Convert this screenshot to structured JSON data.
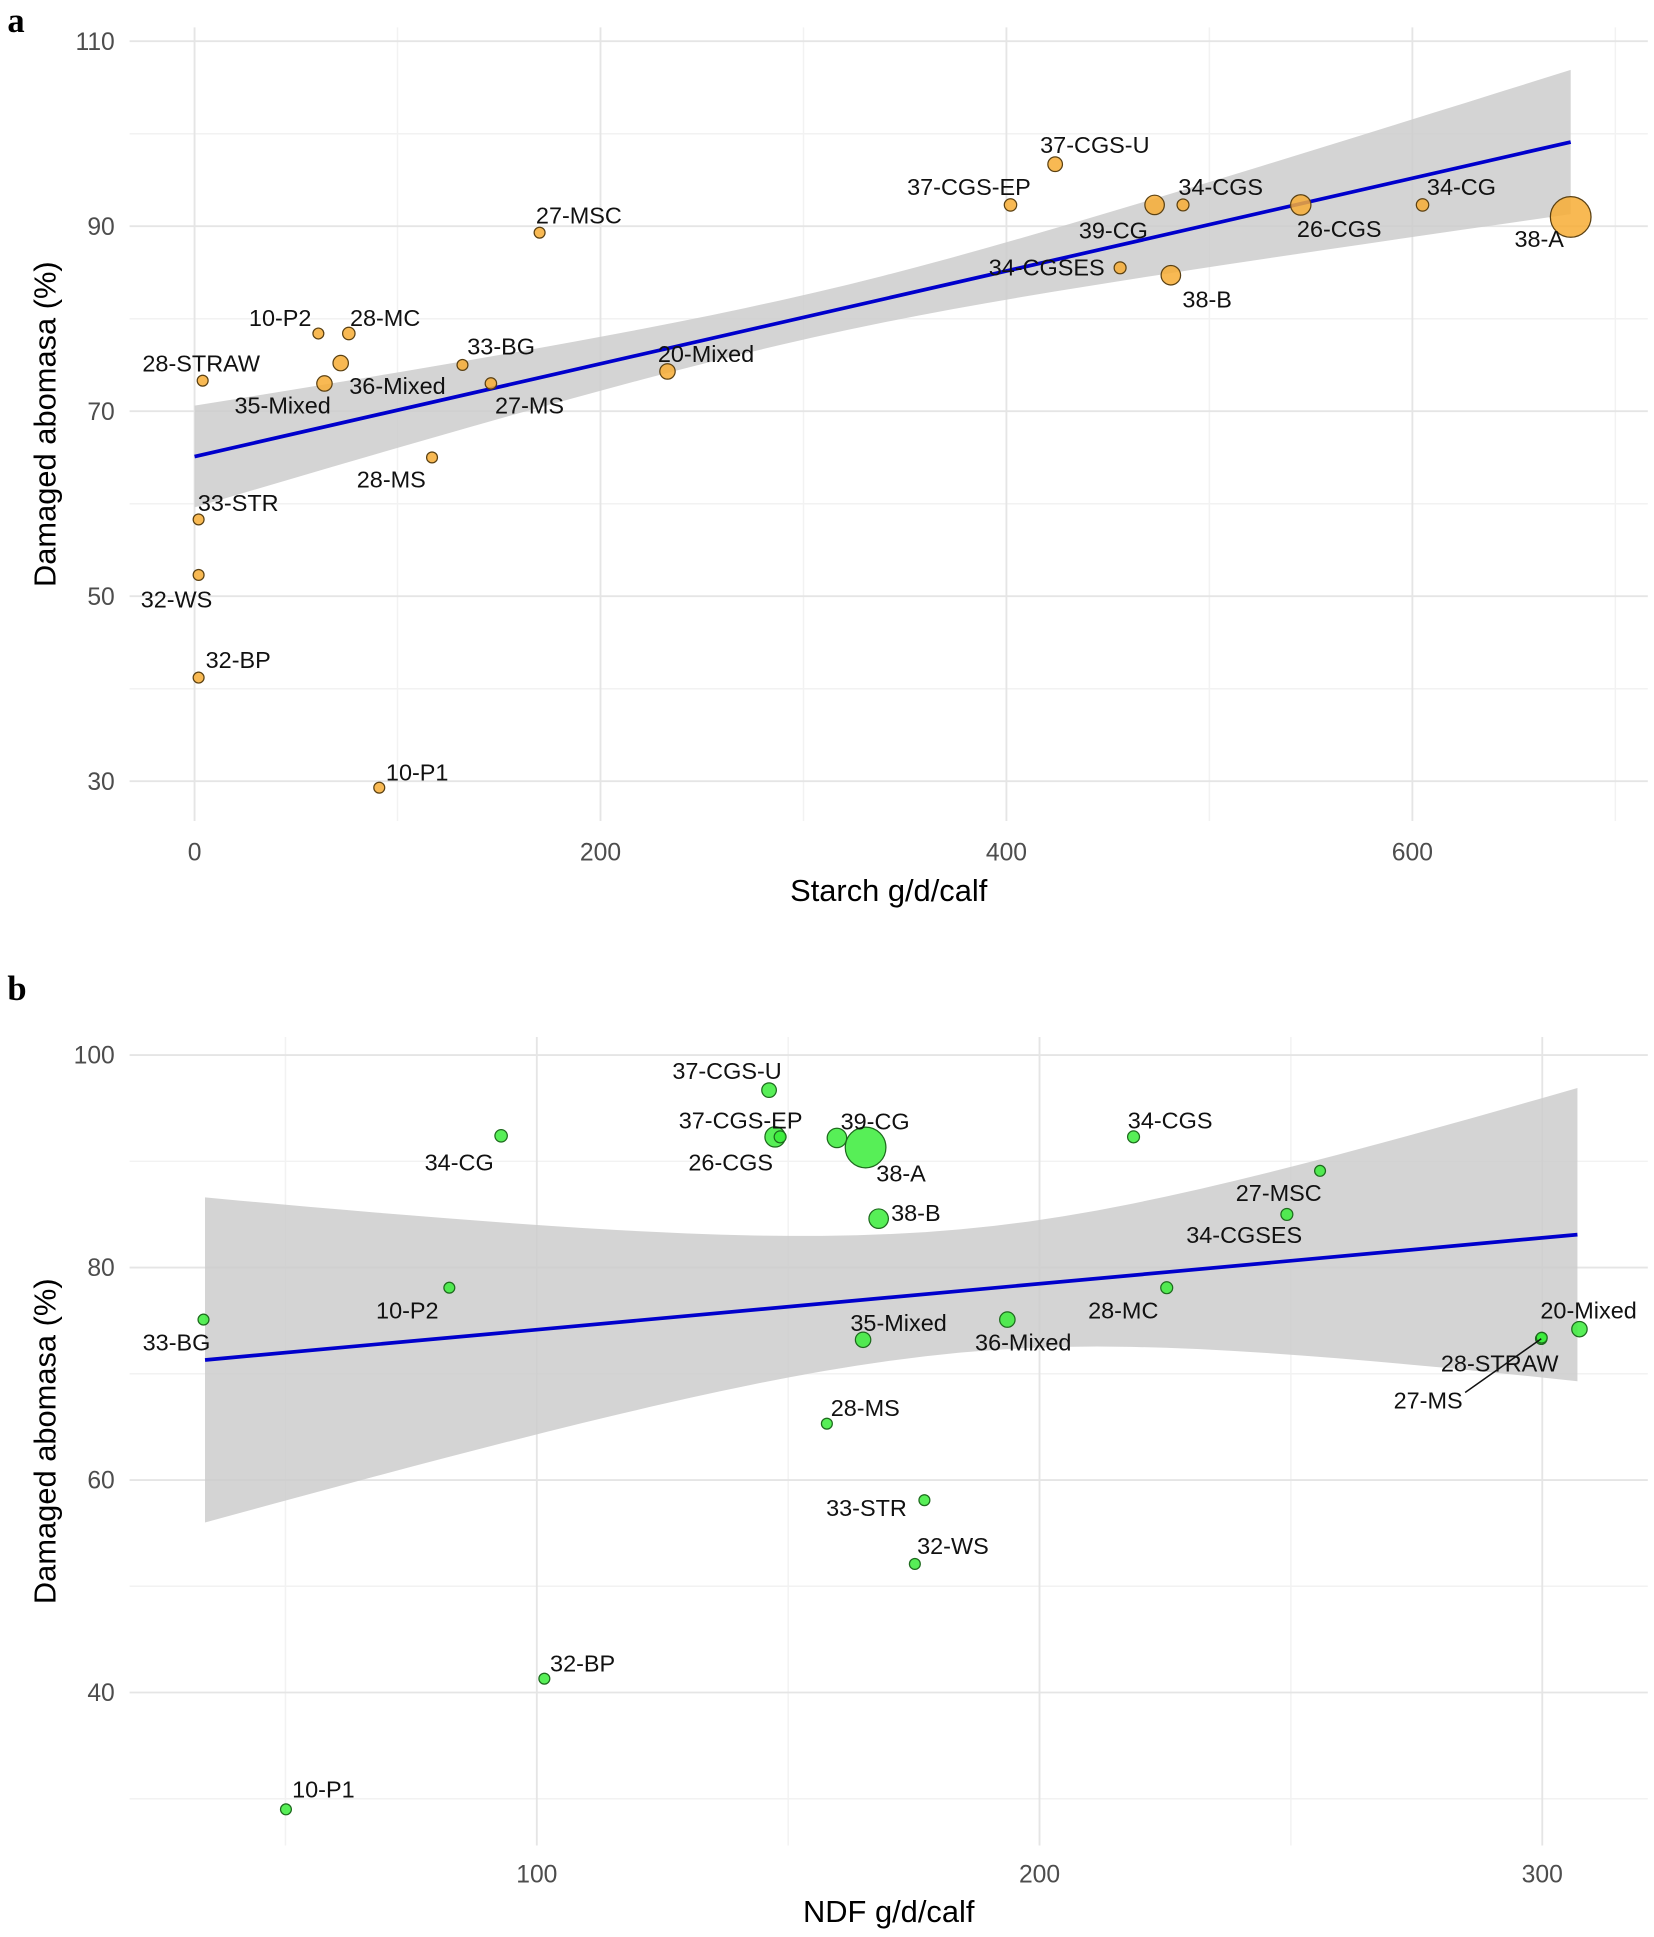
{
  "chart_data": [
    {
      "panel": "a",
      "type": "scatter",
      "xlabel": "Starch g/d/calf",
      "ylabel": "Damaged abomasa (%)",
      "xlim": [
        -32,
        716
      ],
      "ylim": [
        25.7,
        111.5
      ],
      "xticks": [
        0,
        200,
        400,
        600
      ],
      "yticks": [
        30,
        50,
        70,
        90,
        110
      ],
      "grid": true,
      "marker_color": "#f7ad35",
      "marker_edge": "#5a4012",
      "fit": {
        "x": [
          0,
          678
        ],
        "y": [
          65.1,
          99.1
        ],
        "color": "#0000cc"
      },
      "ci_band": {
        "x_center": 300,
        "x": [
          0,
          678
        ],
        "y_mean": [
          65.1,
          99.1
        ],
        "half_width_at_ends": [
          5.5,
          7.8
        ],
        "half_width_min": 2.4,
        "color": "#cccccc"
      },
      "points": [
        {
          "label": "28-STRAW",
          "x": 4,
          "y": 73.3,
          "size": 1
        },
        {
          "label": "10-P2",
          "x": 61,
          "y": 78.4,
          "size": 1
        },
        {
          "label": "28-MC",
          "x": 76,
          "y": 78.4,
          "size": 1.3
        },
        {
          "label": "36-Mixed",
          "x": 72,
          "y": 75.2,
          "size": 2
        },
        {
          "label": "35-Mixed",
          "x": 64,
          "y": 73,
          "size": 2
        },
        {
          "label": "33-BG",
          "x": 132,
          "y": 75,
          "size": 1
        },
        {
          "label": "27-MS",
          "x": 146,
          "y": 73,
          "size": 1.1
        },
        {
          "label": "28-MS",
          "x": 117,
          "y": 65,
          "size": 1
        },
        {
          "label": "27-MSC",
          "x": 170,
          "y": 89.3,
          "size": 1
        },
        {
          "label": "20-Mixed",
          "x": 233,
          "y": 74.3,
          "size": 2
        },
        {
          "label": "33-STR",
          "x": 2,
          "y": 58.3,
          "size": 1
        },
        {
          "label": "32-WS",
          "x": 2,
          "y": 52.3,
          "size": 1
        },
        {
          "label": "32-BP",
          "x": 2,
          "y": 41.2,
          "size": 1
        },
        {
          "label": "10-P1",
          "x": 91,
          "y": 29.3,
          "size": 1
        },
        {
          "label": "37-CGS-EP",
          "x": 402,
          "y": 92.3,
          "size": 1.3
        },
        {
          "label": "37-CGS-U",
          "x": 424,
          "y": 96.7,
          "size": 1.8
        },
        {
          "label": "39-CG",
          "x": 473,
          "y": 92.3,
          "size": 3.2
        },
        {
          "label": "34-CGS",
          "x": 487,
          "y": 92.3,
          "size": 1.2
        },
        {
          "label": "34-CGSES",
          "x": 456,
          "y": 85.5,
          "size": 1.2
        },
        {
          "label": "38-B",
          "x": 481,
          "y": 84.7,
          "size": 3.2
        },
        {
          "label": "26-CGS",
          "x": 545,
          "y": 92.3,
          "size": 3.5
        },
        {
          "label": "34-CG",
          "x": 605,
          "y": 92.3,
          "size": 1.3
        },
        {
          "label": "38-A",
          "x": 678,
          "y": 91,
          "size": 6.4
        }
      ]
    },
    {
      "panel": "b",
      "type": "scatter",
      "xlabel": "NDF g/d/calf",
      "ylabel": "Damaged abomasa (%)",
      "xlim": [
        19,
        321
      ],
      "ylim": [
        25.6,
        101.7
      ],
      "xticks": [
        100,
        200,
        300
      ],
      "yticks": [
        40,
        60,
        80,
        100
      ],
      "grid": true,
      "marker_color": "#39ec39",
      "marker_edge": "#1d6a1d",
      "fit": {
        "x": [
          34,
          307
        ],
        "y": [
          71.3,
          83.1
        ],
        "color": "#0000cc"
      },
      "ci_band": {
        "x_center": 185,
        "x": [
          34,
          307
        ],
        "y_mean": [
          71.3,
          83.1
        ],
        "half_width_at_ends": [
          15.3,
          13.8
        ],
        "half_width_min": 5.8,
        "color": "#cccccc"
      },
      "points": [
        {
          "label": "10-P1",
          "x": 50.1,
          "y": 29.0,
          "size": 1
        },
        {
          "label": "32-BP",
          "x": 101.5,
          "y": 41.3,
          "size": 1
        },
        {
          "label": "33-BG",
          "x": 33.7,
          "y": 75.1,
          "size": 1
        },
        {
          "label": "10-P2",
          "x": 82.6,
          "y": 78.1,
          "size": 1
        },
        {
          "label": "34-CG",
          "x": 92.9,
          "y": 92.4,
          "size": 1.3
        },
        {
          "label": "37-CGS-U",
          "x": 146.2,
          "y": 96.7,
          "size": 1.8
        },
        {
          "label": "26-CGS",
          "x": 147.4,
          "y": 92.3,
          "size": 3.5
        },
        {
          "label": "37-CGS-EP",
          "x": 148.4,
          "y": 92.3,
          "size": 1.2
        },
        {
          "label": "39-CG",
          "x": 159.7,
          "y": 92.2,
          "size": 3.2
        },
        {
          "label": "38-A",
          "x": 165.4,
          "y": 91.3,
          "size": 6.4
        },
        {
          "label": "38-B",
          "x": 168,
          "y": 84.6,
          "size": 3.2
        },
        {
          "label": "35-Mixed",
          "x": 164.9,
          "y": 73.2,
          "size": 2
        },
        {
          "label": "28-MS",
          "x": 157.7,
          "y": 65.3,
          "size": 1
        },
        {
          "label": "33-STR",
          "x": 177.1,
          "y": 58.1,
          "size": 1
        },
        {
          "label": "32-WS",
          "x": 175.2,
          "y": 52.1,
          "size": 1
        },
        {
          "label": "36-Mixed",
          "x": 193.6,
          "y": 75.1,
          "size": 2
        },
        {
          "label": "34-CGS",
          "x": 218.7,
          "y": 92.3,
          "size": 1.2
        },
        {
          "label": "28-MC",
          "x": 225.3,
          "y": 78.1,
          "size": 1.2
        },
        {
          "label": "27-MSC",
          "x": 255.8,
          "y": 89.1,
          "size": 1
        },
        {
          "label": "34-CGSES",
          "x": 249.2,
          "y": 85,
          "size": 1.2
        },
        {
          "label": "27-MS",
          "x": 299.8,
          "y": 73.3,
          "size": 1.1
        },
        {
          "label": "28-STRAW",
          "x": 299.9,
          "y": 73.4,
          "size": 1
        },
        {
          "label": "20-Mixed",
          "x": 307.4,
          "y": 74.2,
          "size": 2
        }
      ]
    }
  ],
  "panels": {
    "a": "a",
    "b": "b"
  }
}
